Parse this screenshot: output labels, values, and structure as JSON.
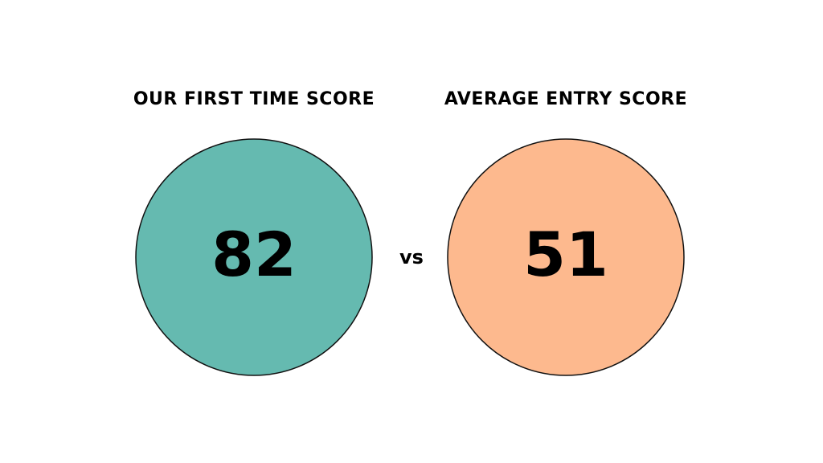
{
  "left": {
    "label": "OUR FIRST TIME SCORE",
    "score": "82",
    "color": "#65bab0"
  },
  "separator": "vs",
  "right": {
    "label": "AVERAGE ENTRY SCORE",
    "score": "51",
    "color": "#fdb98e"
  }
}
